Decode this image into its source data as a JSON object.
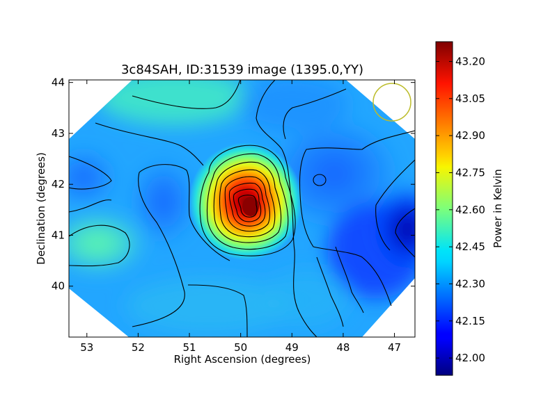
{
  "chart_data": {
    "type": "heatmap",
    "title": "3c84SAH, ID:31539 image (1395.0,YY)",
    "xlabel": "Right Ascension (degrees)",
    "ylabel": "Declination (degrees)",
    "xlim": [
      53.35,
      46.6
    ],
    "ylim": [
      39.0,
      44.05
    ],
    "x_ticks": [
      {
        "value": 53,
        "label": "53"
      },
      {
        "value": 52,
        "label": "52"
      },
      {
        "value": 51,
        "label": "51"
      },
      {
        "value": 50,
        "label": "50"
      },
      {
        "value": 49,
        "label": "49"
      },
      {
        "value": 48,
        "label": "48"
      },
      {
        "value": 47,
        "label": "47"
      }
    ],
    "y_ticks": [
      {
        "value": 40,
        "label": "40"
      },
      {
        "value": 41,
        "label": "41"
      },
      {
        "value": 42,
        "label": "42"
      },
      {
        "value": 43,
        "label": "43"
      },
      {
        "value": 44,
        "label": "44"
      }
    ],
    "colorbar": {
      "label": "Power in Kelvin",
      "colormap": "jet",
      "range": [
        41.93,
        43.28
      ],
      "ticks": [
        {
          "value": 42.0,
          "label": "42.00"
        },
        {
          "value": 42.15,
          "label": "42.15"
        },
        {
          "value": 42.3,
          "label": "42.30"
        },
        {
          "value": 42.45,
          "label": "42.45"
        },
        {
          "value": 42.6,
          "label": "42.60"
        },
        {
          "value": 42.75,
          "label": "42.75"
        },
        {
          "value": 42.9,
          "label": "42.90"
        },
        {
          "value": 43.05,
          "label": "43.05"
        },
        {
          "value": 43.2,
          "label": "43.20"
        }
      ]
    },
    "peak": {
      "ra": 49.8,
      "dec": 41.55,
      "value": 43.25
    },
    "minimum": {
      "ra": 46.9,
      "dec": 41.0,
      "value": 41.94
    },
    "contour_lines": "on",
    "beam_marker": {
      "ra": 47.0,
      "dec": 43.55,
      "radius_deg": 0.38,
      "color": "#bcbc2a"
    }
  }
}
